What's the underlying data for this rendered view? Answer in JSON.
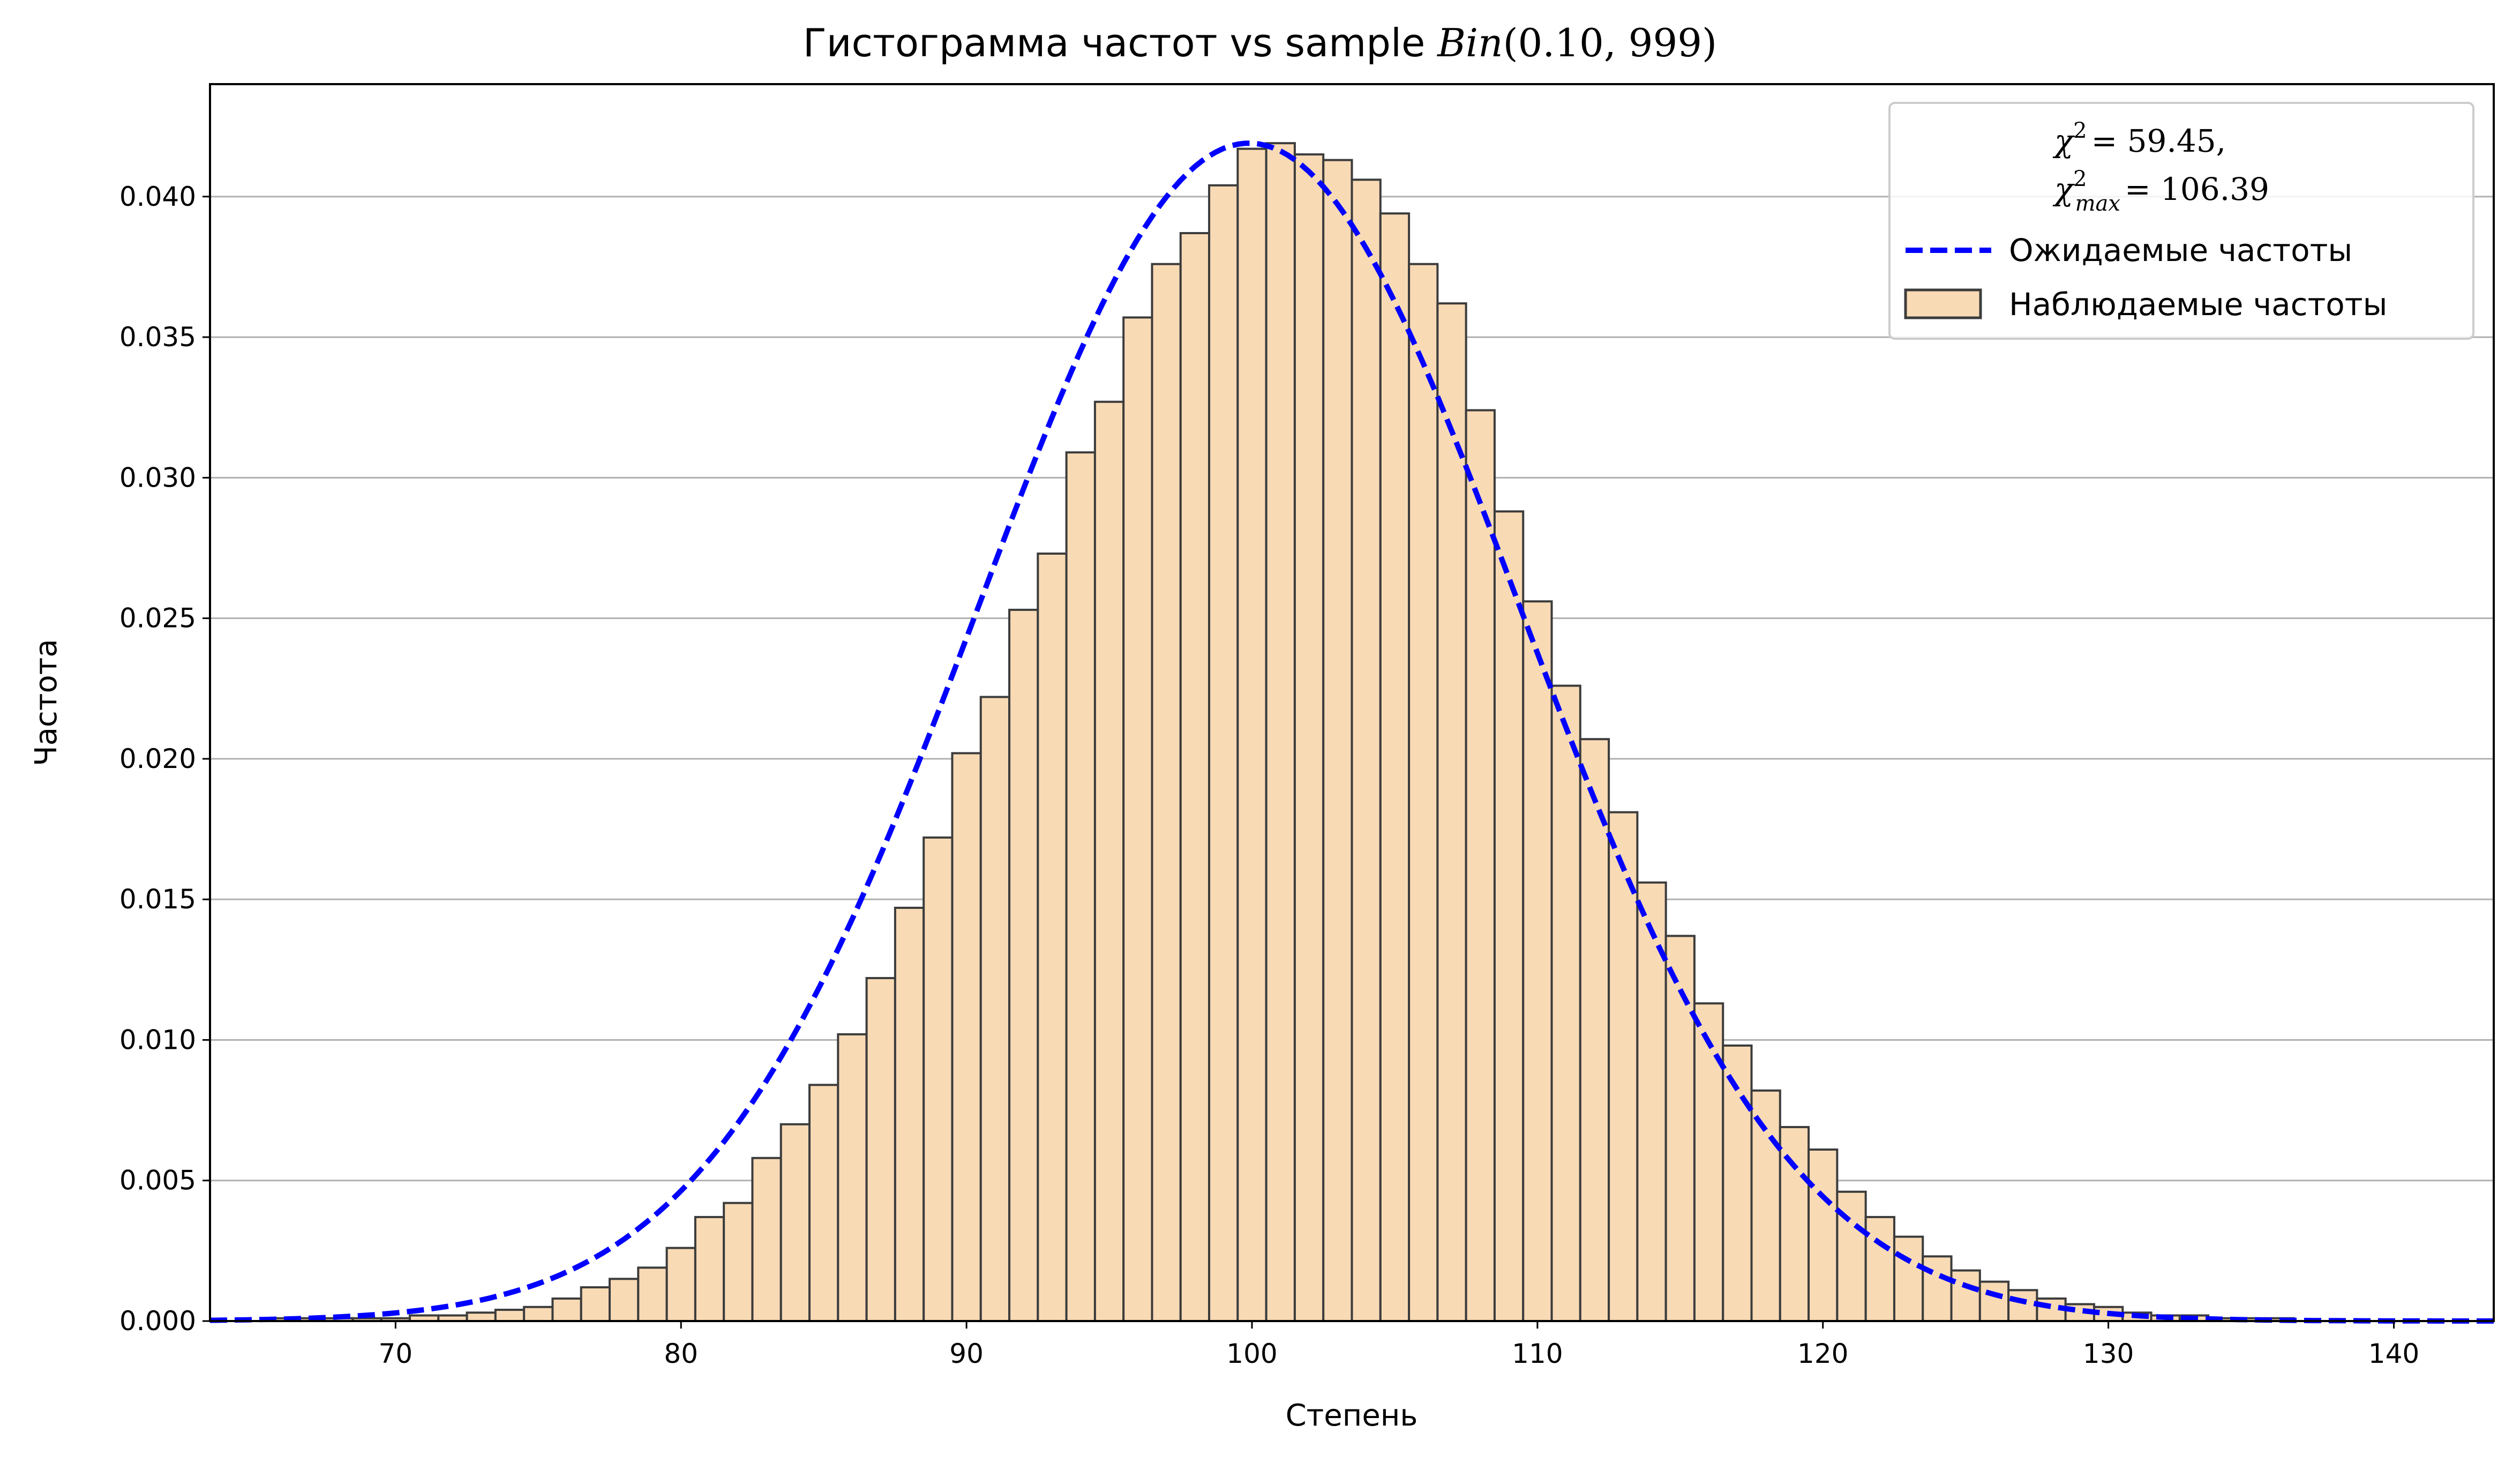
{
  "chart_data": {
    "type": "bar",
    "title_prefix": "Гистограмма частот vs sample",
    "title_math_name": "Bin",
    "title_math_args": "(0.10, 999)",
    "xlabel": "Степень",
    "ylabel": "Частота",
    "xlim": [
      63.5,
      143.5
    ],
    "ylim": [
      0,
      0.044
    ],
    "xticks": [
      70,
      80,
      90,
      100,
      110,
      120,
      130,
      140
    ],
    "yticks": [
      "0.000",
      "0.005",
      "0.010",
      "0.015",
      "0.020",
      "0.025",
      "0.030",
      "0.035",
      "0.040"
    ],
    "grid": "y-major",
    "legend_position": "upper right",
    "legend": {
      "chi2_label": "χ",
      "chi2_value": "= 59.45,",
      "chi2max_label": "χ",
      "chi2max_sub": "max",
      "chi2max_value": "= 106.39",
      "line_label": "Ожидаемые частоты",
      "bar_label": "Наблюдаемые частоты"
    },
    "bin_start": 63.5,
    "bin_width": 1,
    "observed": [
      0.0,
      0.0,
      0.0001,
      0.0001,
      0.0001,
      0.0001,
      0.0001,
      0.0002,
      0.0002,
      0.0003,
      0.0004,
      0.0005,
      0.0008,
      0.0012,
      0.0015,
      0.0019,
      0.0026,
      0.0037,
      0.0042,
      0.0058,
      0.007,
      0.0084,
      0.0102,
      0.0122,
      0.0147,
      0.0172,
      0.0202,
      0.0222,
      0.0253,
      0.0273,
      0.0309,
      0.0327,
      0.0357,
      0.0376,
      0.0387,
      0.0404,
      0.0417,
      0.0419,
      0.0415,
      0.0413,
      0.0406,
      0.0394,
      0.0376,
      0.0362,
      0.0324,
      0.0288,
      0.0256,
      0.0226,
      0.0207,
      0.0181,
      0.0156,
      0.0137,
      0.0113,
      0.0098,
      0.0082,
      0.0069,
      0.0061,
      0.0046,
      0.0037,
      0.003,
      0.0023,
      0.0018,
      0.0014,
      0.0011,
      0.0008,
      0.0006,
      0.0005,
      0.0003,
      0.0002,
      0.0002,
      0.0001,
      0.0001,
      0.0001,
      0.0,
      0.0,
      0.0,
      0.0,
      0.0,
      0.0,
      0.0
    ],
    "expected_line": {
      "name": "Ожидаемые частоты",
      "mean": 99.9,
      "std": 9.482,
      "peak": 0.0419
    },
    "colors": {
      "bar_fill": "#f8dab5",
      "bar_edge": "#3c3c3c",
      "line": "#0000ff",
      "grid": "#b0b0b0"
    }
  }
}
